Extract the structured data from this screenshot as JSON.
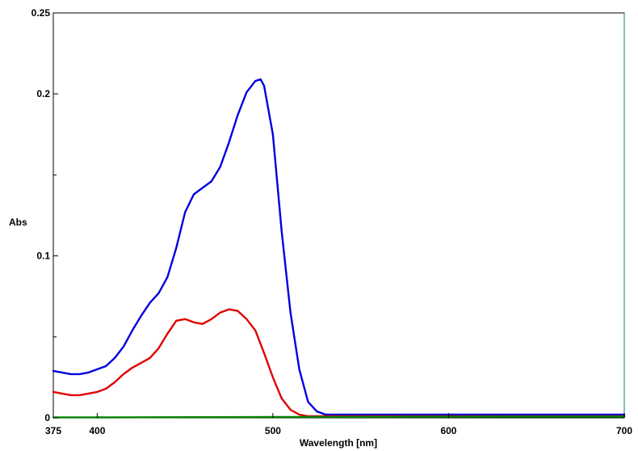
{
  "chart_data": {
    "type": "line",
    "xlabel": "Wavelength [nm]",
    "ylabel": "Abs",
    "xlim": [
      375,
      700
    ],
    "ylim": [
      0,
      0.25
    ],
    "x_ticks": [
      375,
      400,
      500,
      600,
      700
    ],
    "y_ticks": [
      0.25,
      0.2,
      0.1,
      0
    ],
    "y_tick_labels": [
      "0.25",
      "0.2",
      "0.1",
      "0"
    ],
    "y_minor_ticks": [
      0.05,
      0.15
    ],
    "grid": false,
    "series": [
      {
        "color": "#0000e0",
        "x": [
          375,
          380,
          385,
          390,
          395,
          400,
          405,
          410,
          415,
          420,
          425,
          430,
          435,
          440,
          445,
          450,
          455,
          460,
          465,
          470,
          475,
          480,
          485,
          490,
          493,
          495,
          500,
          505,
          510,
          515,
          520,
          525,
          530,
          540,
          560,
          600,
          650,
          700
        ],
        "y": [
          0.029,
          0.028,
          0.027,
          0.027,
          0.028,
          0.03,
          0.032,
          0.037,
          0.044,
          0.054,
          0.063,
          0.071,
          0.077,
          0.087,
          0.105,
          0.127,
          0.138,
          0.142,
          0.146,
          0.155,
          0.17,
          0.187,
          0.201,
          0.208,
          0.209,
          0.205,
          0.175,
          0.115,
          0.065,
          0.03,
          0.01,
          0.004,
          0.002,
          0.002,
          0.002,
          0.002,
          0.002,
          0.002
        ]
      },
      {
        "color": "#e00000",
        "x": [
          375,
          380,
          385,
          390,
          395,
          400,
          405,
          410,
          415,
          420,
          425,
          430,
          435,
          440,
          445,
          450,
          455,
          460,
          465,
          470,
          475,
          480,
          485,
          490,
          495,
          500,
          505,
          510,
          515,
          520,
          525,
          530,
          540,
          560,
          600,
          650,
          700
        ],
        "y": [
          0.016,
          0.015,
          0.014,
          0.014,
          0.015,
          0.016,
          0.018,
          0.022,
          0.027,
          0.031,
          0.034,
          0.037,
          0.043,
          0.052,
          0.06,
          0.061,
          0.059,
          0.058,
          0.061,
          0.065,
          0.067,
          0.066,
          0.061,
          0.054,
          0.04,
          0.025,
          0.012,
          0.005,
          0.002,
          0.001,
          0.001,
          0.001,
          0.001,
          0.001,
          0.001,
          0.001,
          0.001
        ]
      },
      {
        "color": "#008000",
        "x": [
          375,
          400,
          450,
          500,
          550,
          600,
          650,
          700
        ],
        "y": [
          0.0003,
          0.0003,
          0.0004,
          0.0005,
          0.0006,
          0.0007,
          0.0008,
          0.0008
        ]
      }
    ]
  }
}
